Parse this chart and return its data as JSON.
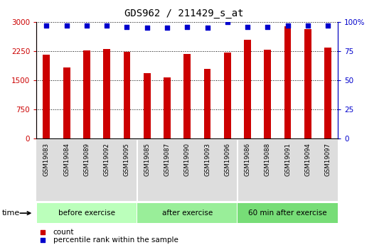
{
  "title": "GDS962 / 211429_s_at",
  "samples": [
    "GSM19083",
    "GSM19084",
    "GSM19089",
    "GSM19092",
    "GSM19095",
    "GSM19085",
    "GSM19087",
    "GSM19090",
    "GSM19093",
    "GSM19096",
    "GSM19086",
    "GSM19088",
    "GSM19091",
    "GSM19094",
    "GSM19097"
  ],
  "counts": [
    2150,
    1830,
    2260,
    2310,
    2240,
    1680,
    1570,
    2180,
    1790,
    2220,
    2550,
    2280,
    2900,
    2810,
    2340
  ],
  "percentile_ranks": [
    97,
    97,
    97,
    97,
    96,
    95,
    95,
    96,
    95,
    100,
    96,
    96,
    97,
    97,
    97
  ],
  "bar_color": "#cc0000",
  "dot_color": "#0000cc",
  "groups": [
    {
      "label": "before exercise",
      "start": 0,
      "end": 5,
      "color": "#bbffbb"
    },
    {
      "label": "after exercise",
      "start": 5,
      "end": 10,
      "color": "#99ee99"
    },
    {
      "label": "60 min after exercise",
      "start": 10,
      "end": 15,
      "color": "#77dd77"
    }
  ],
  "ylim_left": [
    0,
    3000
  ],
  "ylim_right": [
    0,
    100
  ],
  "yticks_left": [
    0,
    750,
    1500,
    2250,
    3000
  ],
  "yticks_right": [
    0,
    25,
    50,
    75,
    100
  ],
  "ytick_labels_left": [
    "0",
    "750",
    "1500",
    "2250",
    "3000"
  ],
  "ytick_labels_right": [
    "0",
    "25",
    "50",
    "75",
    "100%"
  ],
  "left_tick_color": "#cc0000",
  "right_tick_color": "#0000cc",
  "legend_count_label": "count",
  "legend_pct_label": "percentile rank within the sample",
  "time_label": "time",
  "bg_color": "#ffffff",
  "plot_bg_color": "#ffffff",
  "xtick_bg_color": "#dddddd",
  "grid_color": "#000000",
  "bar_width": 0.35,
  "percentile_dot_size": 18
}
